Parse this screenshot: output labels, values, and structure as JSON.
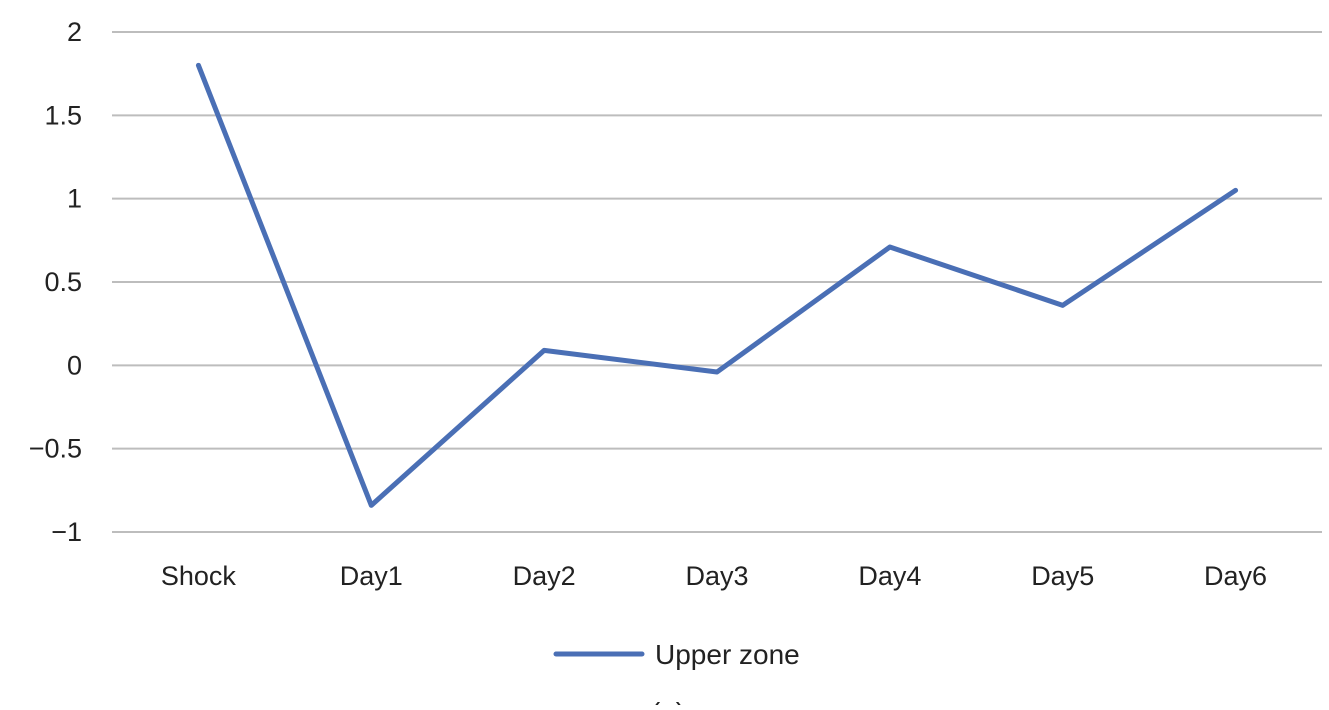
{
  "chart_data": {
    "type": "line",
    "categories": [
      "Shock",
      "Day1",
      "Day2",
      "Day3",
      "Day4",
      "Day5",
      "Day6"
    ],
    "series": [
      {
        "name": "Upper zone",
        "values": [
          1.8,
          -0.84,
          0.09,
          -0.04,
          0.71,
          0.36,
          1.05
        ]
      }
    ],
    "y_ticks": [
      "2",
      "1.5",
      "1",
      "0.5",
      "0",
      "−0.5",
      "−1"
    ],
    "y_tick_values": [
      2,
      1.5,
      1,
      0.5,
      0,
      -0.5,
      -1
    ],
    "ylim": [
      -1,
      2
    ],
    "grid": true,
    "legend": "bottom-center",
    "caption": "(a)",
    "colors": {
      "line": "#4a6fb5",
      "grid": "#bdbdbd"
    }
  }
}
